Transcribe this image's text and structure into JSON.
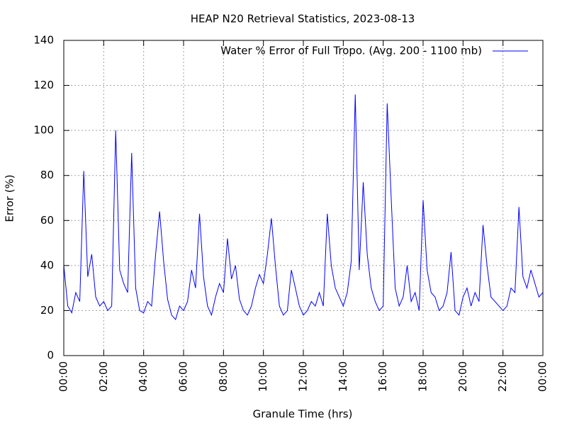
{
  "chart_data": {
    "type": "line",
    "title": "HEAP N20 Retrieval Statistics, 2023-08-13",
    "xlabel": "Granule Time (hrs)",
    "ylabel": "Error (%)",
    "x": [
      0,
      0.2,
      0.4,
      0.6,
      0.8,
      1,
      1.2,
      1.4,
      1.6,
      1.8,
      2,
      2.2,
      2.4,
      2.6,
      2.8,
      3,
      3.2,
      3.4,
      3.6,
      3.8,
      4,
      4.2,
      4.4,
      4.6,
      4.8,
      5,
      5.2,
      5.4,
      5.6,
      5.8,
      6,
      6.2,
      6.4,
      6.6,
      6.8,
      7,
      7.2,
      7.4,
      7.6,
      7.8,
      8,
      8.2,
      8.4,
      8.6,
      8.8,
      9,
      9.2,
      9.4,
      9.6,
      9.8,
      10,
      10.2,
      10.4,
      10.6,
      10.8,
      11,
      11.2,
      11.4,
      11.6,
      11.8,
      12,
      12.2,
      12.4,
      12.6,
      12.8,
      13,
      13.2,
      13.4,
      13.6,
      13.8,
      14,
      14.2,
      14.4,
      14.6,
      14.8,
      15,
      15.2,
      15.4,
      15.6,
      15.8,
      16,
      16.2,
      16.4,
      16.6,
      16.8,
      17,
      17.2,
      17.4,
      17.6,
      17.8,
      18,
      18.2,
      18.4,
      18.6,
      18.8,
      19,
      19.2,
      19.4,
      19.6,
      19.8,
      20,
      20.2,
      20.4,
      20.6,
      20.8,
      21,
      21.2,
      21.4,
      21.6,
      21.8,
      22,
      22.2,
      22.4,
      22.6,
      22.8,
      23,
      23.2,
      23.4,
      23.6,
      23.8,
      24
    ],
    "series": [
      {
        "name": "Water % Error of Full Tropo. (Avg. 200 - 1100 mb)",
        "color": "#0000ff",
        "values": [
          40,
          22,
          19,
          28,
          24,
          82,
          35,
          45,
          26,
          22,
          24,
          20,
          22,
          100,
          38,
          32,
          28,
          90,
          30,
          20,
          19,
          24,
          22,
          45,
          64,
          42,
          25,
          18,
          16,
          22,
          20,
          24,
          38,
          30,
          63,
          35,
          22,
          18,
          26,
          32,
          28,
          52,
          34,
          40,
          25,
          20,
          18,
          22,
          30,
          36,
          32,
          45,
          61,
          40,
          22,
          18,
          20,
          38,
          30,
          22,
          18,
          20,
          24,
          22,
          28,
          22,
          63,
          40,
          30,
          26,
          22,
          28,
          42,
          116,
          38,
          77,
          45,
          30,
          24,
          20,
          22,
          112,
          70,
          30,
          22,
          26,
          40,
          24,
          28,
          20,
          69,
          38,
          28,
          26,
          20,
          22,
          28,
          46,
          20,
          18,
          26,
          30,
          22,
          28,
          24,
          58,
          40,
          26,
          24,
          22,
          20,
          22,
          30,
          28,
          66,
          35,
          30,
          38,
          32,
          26,
          28
        ]
      }
    ],
    "xlim": [
      0,
      24
    ],
    "ylim": [
      0,
      140
    ],
    "xticks": [
      {
        "value": 0,
        "label": "00:00"
      },
      {
        "value": 2,
        "label": "02:00"
      },
      {
        "value": 4,
        "label": "04:00"
      },
      {
        "value": 6,
        "label": "06:00"
      },
      {
        "value": 8,
        "label": "08:00"
      },
      {
        "value": 10,
        "label": "10:00"
      },
      {
        "value": 12,
        "label": "12:00"
      },
      {
        "value": 14,
        "label": "14:00"
      },
      {
        "value": 16,
        "label": "16:00"
      },
      {
        "value": 18,
        "label": "18:00"
      },
      {
        "value": 20,
        "label": "20:00"
      },
      {
        "value": 22,
        "label": "22:00"
      },
      {
        "value": 24,
        "label": "00:00"
      }
    ],
    "yticks": [
      0,
      20,
      40,
      60,
      80,
      100,
      120,
      140
    ],
    "grid": true,
    "legend": "top-right"
  }
}
